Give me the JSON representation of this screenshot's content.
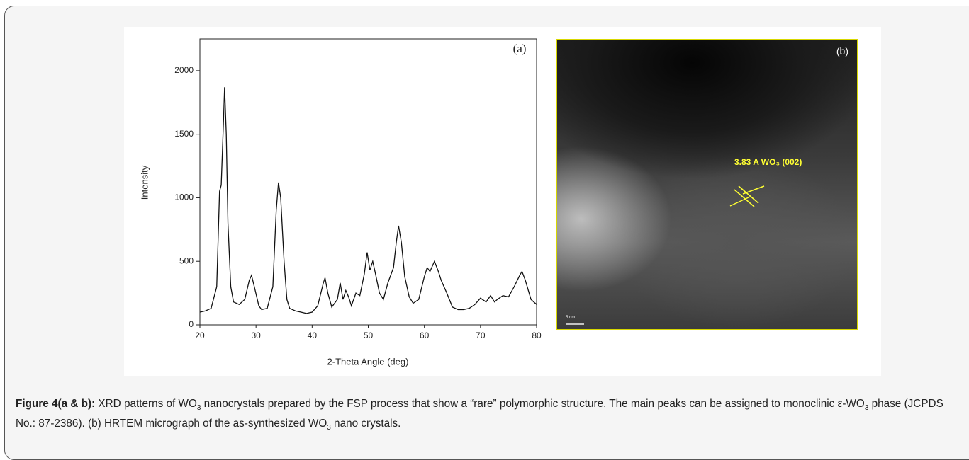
{
  "chart_data": {
    "type": "line",
    "panel_label": "(a)",
    "xlabel": "2-Theta Angle (deg)",
    "ylabel": "Intensity",
    "xlim": [
      20,
      80
    ],
    "ylim": [
      0,
      2250
    ],
    "xticks": [
      20,
      30,
      40,
      50,
      60,
      70,
      80
    ],
    "yticks": [
      0,
      500,
      1000,
      1500,
      2000
    ],
    "color": "#111111",
    "x": [
      20,
      21,
      22,
      23,
      23.5,
      23.8,
      24.2,
      24.4,
      24.7,
      25,
      25.5,
      26,
      27,
      28,
      28.8,
      29.2,
      29.7,
      30.5,
      31,
      32,
      33,
      33.6,
      34,
      34.4,
      35,
      35.5,
      36,
      37,
      38,
      39,
      40,
      41,
      42,
      42.3,
      42.8,
      43.5,
      44.5,
      45,
      45.5,
      46,
      46.5,
      47,
      47.8,
      48.5,
      49.3,
      49.8,
      50.3,
      50.8,
      51.3,
      52,
      52.7,
      53.5,
      54.5,
      55,
      55.4,
      55.9,
      56.5,
      57.3,
      58,
      59,
      60,
      60.5,
      61,
      61.8,
      62.5,
      63,
      64,
      65,
      66,
      67,
      68,
      69,
      70,
      71,
      71.8,
      72.5,
      73,
      74,
      75,
      76,
      77,
      77.4,
      78,
      79,
      80
    ],
    "values": [
      100,
      110,
      130,
      300,
      1050,
      1100,
      1600,
      1870,
      1500,
      800,
      300,
      180,
      160,
      200,
      350,
      390,
      300,
      150,
      120,
      130,
      300,
      900,
      1120,
      1000,
      500,
      200,
      130,
      110,
      100,
      90,
      100,
      150,
      330,
      370,
      250,
      140,
      200,
      330,
      200,
      270,
      220,
      150,
      250,
      230,
      400,
      570,
      430,
      500,
      400,
      250,
      200,
      330,
      450,
      650,
      780,
      650,
      380,
      220,
      170,
      200,
      380,
      450,
      420,
      500,
      420,
      350,
      250,
      140,
      120,
      120,
      130,
      160,
      210,
      180,
      230,
      180,
      200,
      230,
      220,
      300,
      390,
      420,
      350,
      200,
      160
    ]
  },
  "panel_b": {
    "label": "(b)",
    "annotation": "3.83 A  WO₃ (002)",
    "scale_bar": "5 nm"
  },
  "caption": {
    "label": "Figure 4(a & b):",
    "segments": [
      {
        "text": " XRD patterns of WO"
      },
      {
        "text": "3",
        "sub": true
      },
      {
        "text": " nanocrystals prepared by the FSP process that show a “rare” polymorphic structure. The main peaks can be assigned to monoclinic ε-WO"
      },
      {
        "text": "3",
        "sub": true
      },
      {
        "text": " phase (JCPDS No.: 87-2386). (b) HRTEM micrograph of the as-synthesized WO"
      },
      {
        "text": "3",
        "sub": true
      },
      {
        "text": " nano crystals."
      }
    ]
  }
}
